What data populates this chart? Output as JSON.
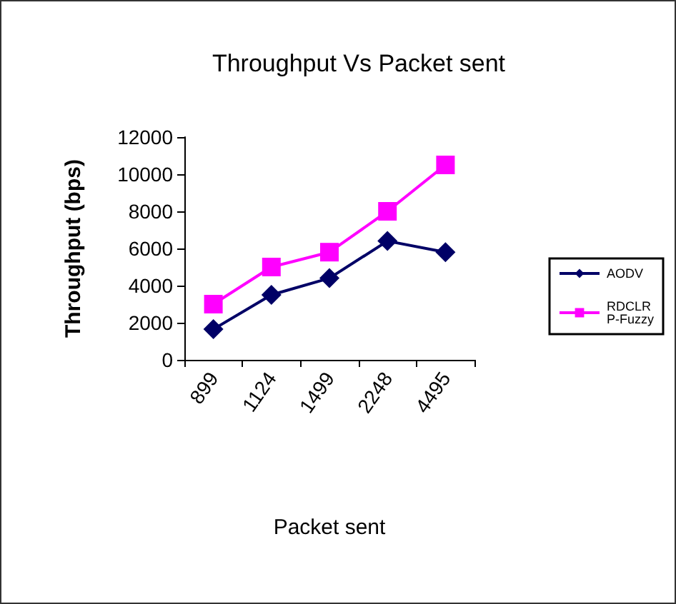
{
  "chart_data": {
    "type": "line",
    "title": "Throughput Vs Packet sent",
    "xlabel": "Packet sent",
    "ylabel": "Throughput (bps)",
    "categories": [
      "899",
      "1124",
      "1499",
      "2248",
      "4495"
    ],
    "series": [
      {
        "name": "AODV",
        "color": "#000066",
        "marker": "diamond",
        "values": [
          1650,
          3500,
          4400,
          6400,
          5800
        ]
      },
      {
        "name": "RDCLR P-Fuzzy",
        "color": "#ff00ff",
        "marker": "square",
        "values": [
          3000,
          5000,
          5800,
          8000,
          10500
        ]
      }
    ],
    "ylim": [
      0,
      12000
    ],
    "yticks": [
      0,
      2000,
      4000,
      6000,
      8000,
      10000,
      12000
    ],
    "grid": false,
    "legend": "right"
  }
}
